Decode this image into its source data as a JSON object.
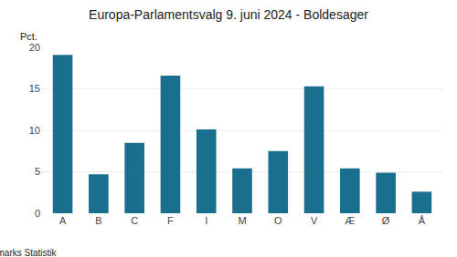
{
  "chart_data": {
    "type": "bar",
    "title": "Europa-Parlamentsvalg 9. juni 2024 - Boldesager",
    "categories": [
      "A",
      "B",
      "C",
      "F",
      "I",
      "M",
      "O",
      "V",
      "Æ",
      "Ø",
      "Å"
    ],
    "values": [
      19.1,
      4.7,
      8.5,
      16.6,
      10.1,
      5.4,
      7.5,
      15.3,
      5.4,
      4.9,
      2.6
    ],
    "color": "#1a6e8e",
    "ylabel": "Pct.",
    "annotations": [
      "© Danmarks Statistik"
    ],
    "ylim": [
      0,
      20
    ],
    "yticks": [
      0,
      5,
      10,
      15,
      20
    ],
    "grid": true
  }
}
